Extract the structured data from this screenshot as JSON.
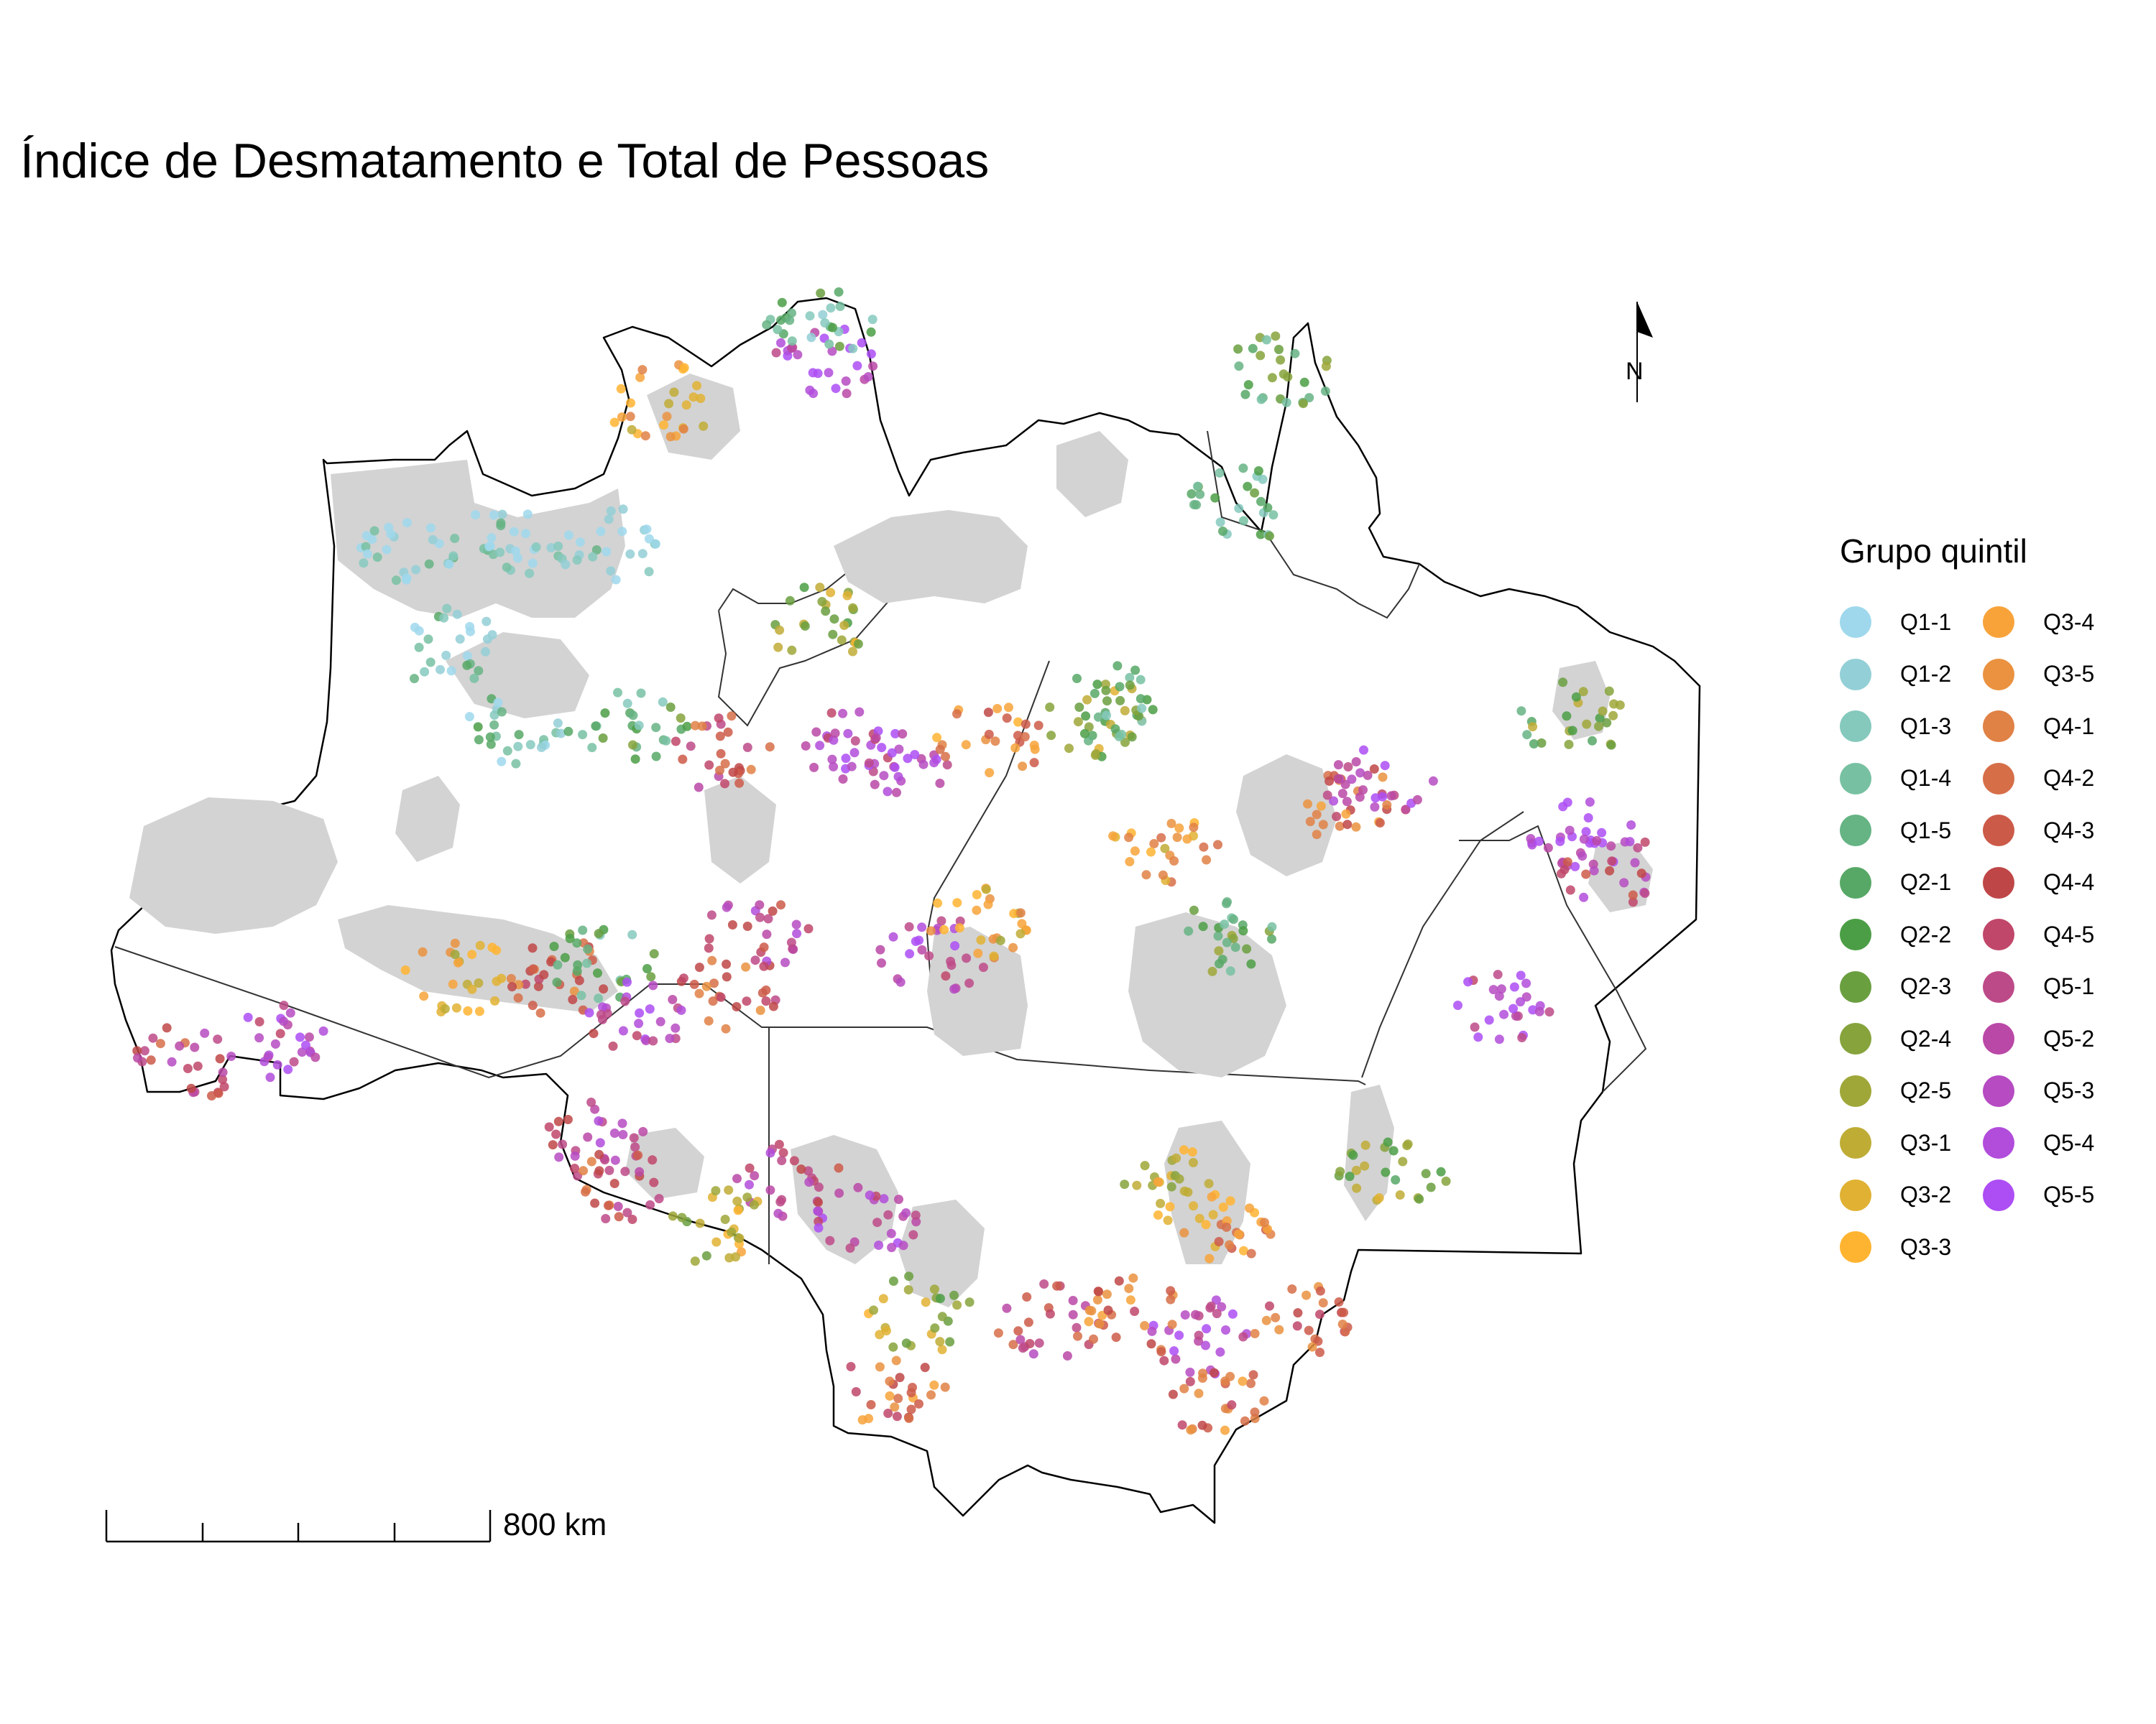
{
  "title": "Índice de Desmatamento e Total de Pessoas",
  "legend": {
    "title": "Grupo quintil",
    "items": [
      {
        "label": "Q1-1",
        "color": "#9fd8ec"
      },
      {
        "label": "Q1-2",
        "color": "#93cfd6"
      },
      {
        "label": "Q1-3",
        "color": "#85c9bd"
      },
      {
        "label": "Q1-4",
        "color": "#77c1a2"
      },
      {
        "label": "Q1-5",
        "color": "#66b384"
      },
      {
        "label": "Q2-1",
        "color": "#57a866"
      },
      {
        "label": "Q2-2",
        "color": "#4b9e45"
      },
      {
        "label": "Q2-3",
        "color": "#6a9f40"
      },
      {
        "label": "Q2-4",
        "color": "#86a33c"
      },
      {
        "label": "Q2-5",
        "color": "#9fa738"
      },
      {
        "label": "Q3-1",
        "color": "#bfac35"
      },
      {
        "label": "Q3-2",
        "color": "#e0b133"
      },
      {
        "label": "Q3-3",
        "color": "#ffb431"
      },
      {
        "label": "Q3-4",
        "color": "#f7a33a"
      },
      {
        "label": "Q3-5",
        "color": "#ea9240"
      },
      {
        "label": "Q4-1",
        "color": "#e08145"
      },
      {
        "label": "Q4-2",
        "color": "#d66e48"
      },
      {
        "label": "Q4-3",
        "color": "#cc5a49"
      },
      {
        "label": "Q4-4",
        "color": "#bf4647"
      },
      {
        "label": "Q4-5",
        "color": "#c0476a"
      },
      {
        "label": "Q5-1",
        "color": "#bd4a88"
      },
      {
        "label": "Q5-2",
        "color": "#ba48a6"
      },
      {
        "label": "Q5-3",
        "color": "#b64bc2"
      },
      {
        "label": "Q5-4",
        "color": "#b14cdb"
      },
      {
        "label": "Q5-5",
        "color": "#ad4df4"
      }
    ]
  },
  "north_arrow": {
    "label": "N"
  },
  "scale_bar": {
    "label": "800 km"
  },
  "colors": {
    "region_fill": "#ffffff",
    "region_stroke": "#000000",
    "land_shading": "#d3d3d3"
  }
}
